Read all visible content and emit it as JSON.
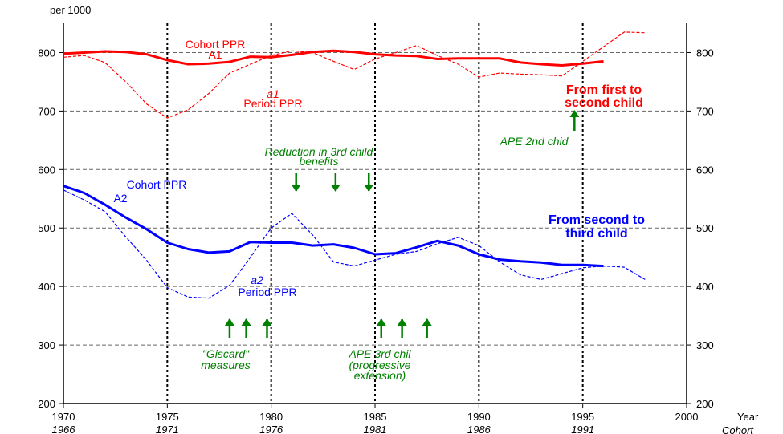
{
  "chart_data": {
    "type": "line",
    "unit_label": "per 1000",
    "xlabel": "Year",
    "xlabel2": "Cohort",
    "xlim": [
      1970,
      2000
    ],
    "ylim": [
      200,
      850
    ],
    "x_ticks": [
      1970,
      1975,
      1980,
      1985,
      1990,
      1995,
      2000
    ],
    "x_ticks_cohort": [
      "1966",
      "1971",
      "1976",
      "1981",
      "1986",
      "1991"
    ],
    "y_ticks": [
      200,
      300,
      400,
      500,
      600,
      700,
      800
    ],
    "grid": {
      "horizontal_dashed": true,
      "vertical_dotted_at": [
        1975,
        1980,
        1985,
        1990,
        1995
      ]
    },
    "series": [
      {
        "name": "Cohort PPR A1",
        "color": "#ff0000",
        "style": "solid-thick",
        "x": [
          1970,
          1971,
          1972,
          1973,
          1974,
          1975,
          1976,
          1977,
          1978,
          1979,
          1980,
          1981,
          1982,
          1983,
          1984,
          1985,
          1986,
          1987,
          1988,
          1989,
          1990,
          1991,
          1992,
          1993,
          1994,
          1995,
          1996
        ],
        "y": [
          798,
          800,
          802,
          801,
          797,
          787,
          780,
          781,
          784,
          793,
          792,
          796,
          801,
          803,
          801,
          797,
          795,
          794,
          789,
          790,
          790,
          790,
          783,
          780,
          778,
          781,
          785
        ]
      },
      {
        "name": "a1 Period PPR",
        "color": "#ff0000",
        "style": "dashed-thin",
        "x": [
          1970,
          1971,
          1972,
          1973,
          1974,
          1975,
          1976,
          1977,
          1978,
          1979,
          1980,
          1981,
          1982,
          1983,
          1984,
          1985,
          1986,
          1987,
          1988,
          1989,
          1990,
          1991,
          1992,
          1993,
          1994,
          1995,
          1996,
          1997,
          1998
        ],
        "y": [
          792,
          795,
          783,
          750,
          712,
          688,
          702,
          730,
          765,
          780,
          795,
          803,
          800,
          785,
          771,
          789,
          800,
          812,
          795,
          780,
          758,
          765,
          763,
          762,
          760,
          785,
          810,
          835,
          834
        ]
      },
      {
        "name": "Cohort PPR A2",
        "color": "#0000ff",
        "style": "solid-thick",
        "x": [
          1970,
          1971,
          1972,
          1973,
          1974,
          1975,
          1976,
          1977,
          1978,
          1979,
          1980,
          1981,
          1982,
          1983,
          1984,
          1985,
          1986,
          1987,
          1988,
          1989,
          1990,
          1991,
          1992,
          1993,
          1994,
          1995,
          1996
        ],
        "y": [
          572,
          560,
          540,
          518,
          498,
          475,
          464,
          458,
          460,
          476,
          475,
          475,
          470,
          472,
          466,
          455,
          457,
          467,
          478,
          470,
          455,
          446,
          443,
          441,
          437,
          437,
          435
        ]
      },
      {
        "name": "a2 Period PPR",
        "color": "#0000ff",
        "style": "dashed-thin",
        "x": [
          1970,
          1971,
          1972,
          1973,
          1974,
          1975,
          1976,
          1977,
          1978,
          1979,
          1980,
          1981,
          1982,
          1983,
          1984,
          1985,
          1986,
          1987,
          1988,
          1989,
          1990,
          1991,
          1992,
          1993,
          1994,
          1995,
          1996,
          1997,
          1998
        ],
        "y": [
          565,
          548,
          528,
          485,
          445,
          398,
          382,
          380,
          402,
          450,
          500,
          525,
          488,
          442,
          435,
          445,
          455,
          460,
          473,
          484,
          470,
          442,
          420,
          412,
          422,
          432,
          435,
          433,
          412
        ]
      }
    ],
    "annotations": {
      "cohort_a1": [
        "Cohort PPR",
        "A1"
      ],
      "period_a1": [
        "a1",
        "Period PPR"
      ],
      "first_to_second": [
        "From first to",
        "second child"
      ],
      "ape_2nd": "APE 2nd chid",
      "reduction": [
        "Reduction in 3rd child",
        "benefits"
      ],
      "cohort_a2": [
        "Cohort PPR",
        "A2"
      ],
      "second_to_third": [
        "From second to",
        "third child"
      ],
      "period_a2": [
        "a2",
        "Period PPR"
      ],
      "giscard": [
        "\"Giscard\"",
        "measures"
      ],
      "ape_3rd": [
        "APE 3rd chil",
        "(progressive",
        "extension)"
      ]
    },
    "arrows_up_years": [
      1978.0,
      1978.8,
      1979.8,
      1985.3,
      1986.3,
      1987.5,
      1994.6
    ],
    "arrows_down_years": [
      1981.2,
      1983.1,
      1984.7
    ],
    "colors": {
      "red": "#ff0000",
      "blue": "#0000ff",
      "green": "#008000"
    }
  }
}
